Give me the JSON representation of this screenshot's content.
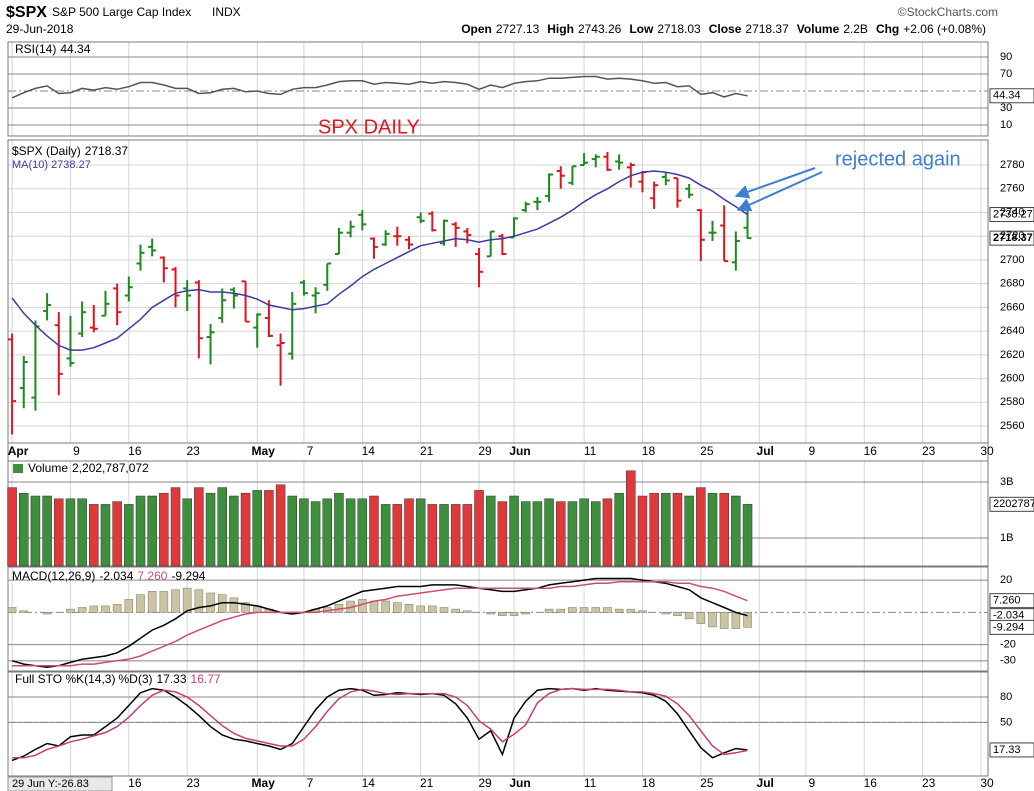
{
  "header": {
    "symbol": "$SPX",
    "name": "S&P 500 Large Cap Index",
    "exchange": "INDX",
    "date": "29-Jun-2018",
    "source": "©StockCharts.com",
    "quote": [
      {
        "label": "Open",
        "value": 2727.13
      },
      {
        "label": "High",
        "value": 2743.26
      },
      {
        "label": "Low",
        "value": 2718.03
      },
      {
        "label": "Close",
        "value": 2718.37
      },
      {
        "label": "Volume",
        "value": "2.2B"
      },
      {
        "label": "Chg",
        "value": "+2.06 (+0.08%)"
      }
    ],
    "cursor_label": "29 Jun Y:-26.83"
  },
  "chart_data": [
    {
      "type": "line",
      "ylim": [
        -3,
        107.6
      ],
      "yticks": [
        10,
        30,
        70,
        90
      ],
      "center_line": 50,
      "series": [
        {
          "name": "RSI(14)",
          "color": "#555555",
          "values": [
            42,
            48,
            53,
            56,
            47,
            48,
            53,
            51,
            54,
            52,
            55,
            60,
            60,
            57,
            53,
            53,
            47,
            48,
            52,
            53,
            49,
            50,
            47,
            46,
            52,
            54,
            54,
            57,
            61,
            62,
            62,
            58,
            60,
            59,
            58,
            61,
            59,
            61,
            60,
            58,
            52,
            57,
            54,
            59,
            61,
            62,
            65,
            65,
            66,
            67,
            67,
            64,
            65,
            64,
            62,
            59,
            60,
            55,
            56,
            46,
            48,
            43,
            47,
            44.34
          ]
        }
      ]
    },
    {
      "type": "ohlc",
      "name": "$SPX (Daily)",
      "annotations": [
        "SPX DAILY",
        "rejected again"
      ],
      "ylim": [
        2545.7,
        2801.1
      ],
      "yticks": [
        2560,
        2580,
        2600,
        2620,
        2640,
        2660,
        2680,
        2700,
        2720,
        2740,
        2760,
        2780
      ],
      "xlim": [
        -0.35,
        83.6
      ],
      "xticks": [
        {
          "value": 0,
          "label": "Apr"
        },
        {
          "value": 5,
          "label": "9"
        },
        {
          "value": 10,
          "label": "16"
        },
        {
          "value": 15,
          "label": "23"
        },
        {
          "value": 21,
          "label": "May"
        },
        {
          "value": 25,
          "label": "7"
        },
        {
          "value": 30,
          "label": "14"
        },
        {
          "value": 35,
          "label": "21"
        },
        {
          "value": 40,
          "label": "29"
        },
        {
          "value": 43,
          "label": "Jun"
        },
        {
          "value": 49,
          "label": "11"
        },
        {
          "value": 54,
          "label": "18"
        },
        {
          "value": 59,
          "label": "25"
        },
        {
          "value": 64,
          "label": "Jul"
        },
        {
          "value": 68,
          "label": "9"
        },
        {
          "value": 73,
          "label": "16"
        },
        {
          "value": 78,
          "label": "23"
        },
        {
          "value": 83,
          "label": "30"
        }
      ],
      "up_color": "#1e8a1e",
      "down_color": "#e0141e",
      "open": [
        2633,
        2592,
        2584,
        2657,
        2645,
        2617,
        2638,
        2643,
        2653,
        2676,
        2670,
        2697,
        2711,
        2702,
        2692,
        2676,
        2681,
        2635,
        2651,
        2675,
        2682,
        2643,
        2651,
        2628,
        2621,
        2681,
        2670,
        2679,
        2705,
        2723,
        2738,
        2718,
        2713,
        2720,
        2717,
        2736,
        2739,
        2714,
        2730,
        2724,
        2705,
        2703,
        2720,
        2719,
        2742,
        2749,
        2754,
        2775,
        2765,
        2780,
        2785,
        2787,
        2783,
        2778,
        2766,
        2752,
        2770,
        2769,
        2760,
        2742,
        2723,
        2729,
        2698,
        2727.13
      ],
      "high": [
        2638,
        2619,
        2649,
        2672,
        2656,
        2653,
        2665,
        2662,
        2674,
        2680,
        2686,
        2713,
        2718,
        2703,
        2694,
        2683,
        2683,
        2646,
        2676,
        2677,
        2682,
        2655,
        2666,
        2638,
        2673,
        2683,
        2677,
        2697,
        2727,
        2733,
        2742,
        2719,
        2725,
        2728,
        2720,
        2740,
        2741,
        2734,
        2732,
        2727,
        2710,
        2724,
        2722,
        2736,
        2749,
        2753,
        2773,
        2779,
        2779,
        2790,
        2789,
        2791,
        2789,
        2782,
        2775,
        2766,
        2774,
        2769,
        2764,
        2743,
        2733,
        2746,
        2724,
        2743.26
      ],
      "low": [
        2553,
        2575,
        2573,
        2649,
        2586,
        2610,
        2635,
        2639,
        2653,
        2645,
        2665,
        2691,
        2703,
        2681,
        2660,
        2657,
        2617,
        2612,
        2647,
        2659,
        2648,
        2626,
        2635,
        2594,
        2616,
        2670,
        2655,
        2674,
        2705,
        2719,
        2725,
        2701,
        2712,
        2712,
        2709,
        2731,
        2724,
        2712,
        2711,
        2714,
        2677,
        2703,
        2704,
        2719,
        2740,
        2742,
        2749,
        2760,
        2763,
        2780,
        2778,
        2775,
        2776,
        2761,
        2757,
        2743,
        2763,
        2744,
        2752,
        2699,
        2716,
        2699,
        2691,
        2718.03
      ],
      "close": [
        2581,
        2614,
        2644,
        2662,
        2604,
        2613,
        2656,
        2642,
        2663,
        2656,
        2677,
        2706,
        2708,
        2693,
        2670,
        2670,
        2634,
        2639,
        2666,
        2670,
        2648,
        2654,
        2636,
        2630,
        2663,
        2672,
        2672,
        2697,
        2723,
        2728,
        2730,
        2711,
        2722,
        2720,
        2713,
        2733,
        2725,
        2733,
        2727,
        2721,
        2690,
        2724,
        2705,
        2735,
        2747,
        2749,
        2772,
        2771,
        2779,
        2782,
        2787,
        2776,
        2782,
        2780,
        2774,
        2763,
        2767,
        2750,
        2755,
        2717,
        2723,
        2699,
        2716,
        2718.37
      ],
      "series": [
        {
          "name": "MA(10)",
          "color": "#3b3ba3",
          "values": [
            2668,
            2655,
            2645,
            2636,
            2628,
            2624,
            2624,
            2626,
            2630,
            2634,
            2642,
            2650,
            2660,
            2666,
            2672,
            2674,
            2675,
            2673,
            2673,
            2672,
            2670,
            2667,
            2662,
            2660,
            2658,
            2659,
            2661,
            2663,
            2671,
            2678,
            2686,
            2692,
            2697,
            2702,
            2707,
            2712,
            2714,
            2716,
            2718,
            2717,
            2715,
            2717,
            2718,
            2720,
            2723,
            2726,
            2731,
            2736,
            2742,
            2749,
            2755,
            2760,
            2766,
            2771,
            2774,
            2775,
            2774,
            2772,
            2769,
            2763,
            2758,
            2751,
            2745,
            2738.27
          ]
        }
      ]
    },
    {
      "type": "bar",
      "ylim": [
        0,
        3750000000
      ],
      "yticks": [
        {
          "value": 1000000000,
          "label": "1B"
        },
        {
          "value": 3000000000,
          "label": "3B"
        }
      ],
      "series": [
        {
          "name": "Volume",
          "legend_label": "2,202,787,072",
          "values": [
            2800000000,
            2600000000,
            2500000000,
            2500000000,
            2400000000,
            2400000000,
            2400000000,
            2200000000,
            2200000000,
            2300000000,
            2200000000,
            2500000000,
            2500000000,
            2600000000,
            2800000000,
            2400000000,
            2800000000,
            2600000000,
            2800000000,
            2500000000,
            2600000000,
            2700000000,
            2700000000,
            2900000000,
            2500000000,
            2400000000,
            2300000000,
            2400000000,
            2600000000,
            2400000000,
            2400000000,
            2500000000,
            2200000000,
            2200000000,
            2400000000,
            2400000000,
            2200000000,
            2200000000,
            2200000000,
            2200000000,
            2700000000,
            2500000000,
            2300000000,
            2500000000,
            2300000000,
            2300000000,
            2400000000,
            2300000000,
            2300000000,
            2400000000,
            2300000000,
            2400000000,
            2600000000,
            3400000000,
            2500000000,
            2600000000,
            2600000000,
            2600000000,
            2500000000,
            2800000000,
            2600000000,
            2600000000,
            2500000000,
            2202787072
          ]
        }
      ]
    },
    {
      "type": "macd",
      "ylim": [
        -36.3,
        28.1
      ],
      "yticks": [
        20,
        -20,
        -30
      ],
      "center_line": 0,
      "series": [
        {
          "name": "MACD(12,26,9)",
          "color": "#000000",
          "values": [
            -30,
            -32,
            -33,
            -34,
            -33,
            -31,
            -29,
            -28,
            -27,
            -25,
            -21,
            -16,
            -11,
            -8,
            -4,
            1,
            3,
            4,
            6,
            6,
            5,
            4,
            2,
            0,
            -1,
            0,
            2,
            4,
            7,
            10,
            13,
            14,
            15,
            16,
            16,
            16,
            17,
            17,
            17,
            16,
            15,
            14,
            13,
            13,
            14,
            15,
            17,
            18,
            19,
            20,
            21,
            21,
            21,
            21,
            20,
            19,
            18,
            16,
            14,
            9,
            6,
            3,
            0,
            -2.034
          ]
        },
        {
          "color": "#c8506e",
          "last_label": "7.260",
          "values": [
            -33,
            -33,
            -33,
            -33,
            -33,
            -33,
            -32,
            -32,
            -31,
            -30,
            -29,
            -27,
            -24,
            -21,
            -18,
            -14,
            -11,
            -8,
            -5,
            -3,
            -1,
            0,
            0,
            0,
            0,
            0,
            0,
            1,
            2,
            3,
            5,
            7,
            8,
            10,
            11,
            12,
            13,
            14,
            15,
            15,
            15,
            15,
            15,
            15,
            15,
            15,
            15,
            16,
            16,
            17,
            18,
            18,
            19,
            19,
            19,
            19,
            19,
            18,
            18,
            16,
            15,
            13,
            10,
            7.26
          ]
        },
        {
          "color": "#cbc4a2",
          "style": "histogram",
          "values": [
            3,
            1,
            0,
            -1,
            0,
            2,
            3,
            4,
            4,
            5,
            8,
            11,
            13,
            13,
            14,
            15,
            14,
            12,
            11,
            9,
            6,
            4,
            2,
            0,
            -1,
            0,
            2,
            3,
            5,
            7,
            8,
            7,
            7,
            6,
            5,
            4,
            4,
            3,
            2,
            1,
            0,
            -1,
            -2,
            -2,
            -1,
            0,
            2,
            2,
            3,
            3,
            3,
            3,
            2,
            2,
            1,
            0,
            -1,
            -2,
            -4,
            -7,
            -9,
            -10,
            -10,
            -9.294
          ]
        }
      ]
    },
    {
      "type": "line",
      "ylim": [
        -13.5,
        109.6
      ],
      "yticks": [
        50,
        80
      ],
      "center_line": 50,
      "series": [
        {
          "name": "Full STO %K(14,3)",
          "color": "#000000",
          "values": [
            5,
            10,
            18,
            25,
            22,
            33,
            35,
            35,
            45,
            55,
            70,
            85,
            90,
            88,
            80,
            70,
            58,
            45,
            35,
            30,
            28,
            25,
            22,
            18,
            25,
            45,
            65,
            80,
            88,
            90,
            88,
            82,
            83,
            85,
            84,
            83,
            84,
            82,
            72,
            55,
            30,
            40,
            12,
            55,
            75,
            88,
            90,
            89,
            90,
            88,
            90,
            88,
            87,
            86,
            85,
            82,
            75,
            60,
            40,
            20,
            8,
            14,
            19,
            17.33
          ]
        },
        {
          "name": "%D(3)",
          "color": "#c8406a",
          "values": [
            8,
            8,
            11,
            18,
            22,
            27,
            30,
            34,
            38,
            45,
            56,
            70,
            82,
            88,
            86,
            80,
            70,
            58,
            46,
            37,
            31,
            28,
            25,
            22,
            22,
            30,
            45,
            63,
            78,
            86,
            89,
            87,
            84,
            83,
            84,
            84,
            84,
            84,
            80,
            70,
            52,
            42,
            27,
            36,
            47,
            73,
            84,
            89,
            90,
            89,
            89,
            89,
            88,
            86,
            86,
            84,
            81,
            72,
            58,
            40,
            22,
            12,
            14,
            16.77
          ]
        }
      ]
    }
  ]
}
